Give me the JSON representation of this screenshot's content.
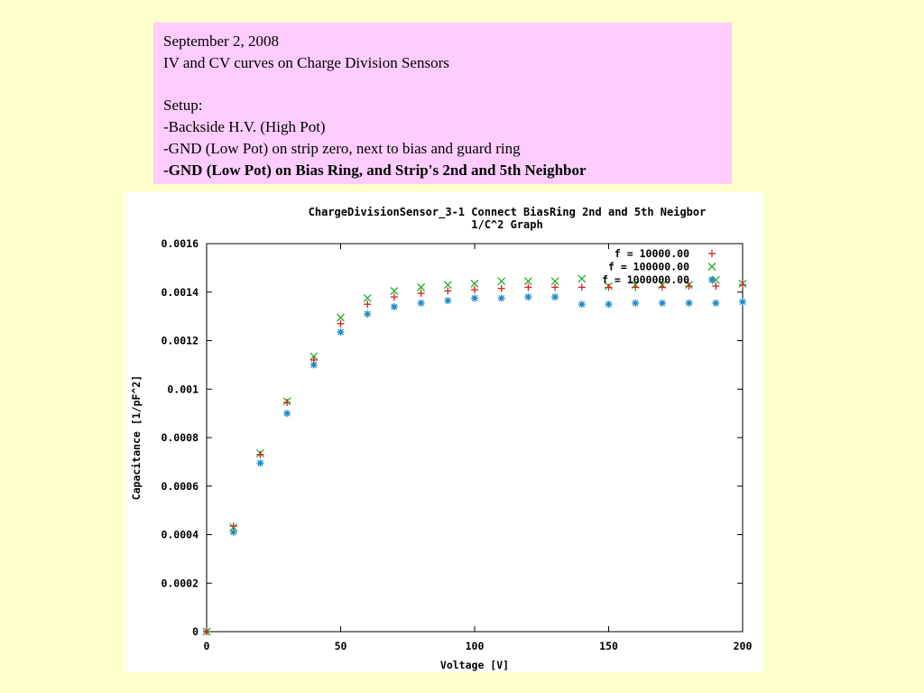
{
  "notes": {
    "date": "September 2, 2008",
    "subject": "IV and CV curves on Charge Division Sensors",
    "setup_heading": "Setup:",
    "setup_items": [
      "-Backside H.V. (High Pot)",
      "-GND (Low Pot) on strip zero, next to bias and guard ring"
    ],
    "setup_highlight": "-GND (Low Pot) on Bias Ring, and Strip's 2nd and 5th Neighbor"
  },
  "chart_data": {
    "type": "scatter",
    "title": "ChargeDivisionSensor_3-1 Connect BiasRing 2nd and 5th Neigbor",
    "subtitle": "1/C^2 Graph",
    "xlabel": "Voltage [V]",
    "ylabel": "Capacitance [1/pF^2]",
    "xlim": [
      0,
      200
    ],
    "ylim": [
      0,
      0.0016
    ],
    "xticks": [
      "0",
      "50",
      "100",
      "150",
      "200"
    ],
    "yticks": [
      "0",
      "0.0002",
      "0.0004",
      "0.0006",
      "0.0008",
      "0.001",
      "0.0012",
      "0.0014",
      "0.0016"
    ],
    "grid": false,
    "legend_position": "top-right",
    "series": [
      {
        "name": "f = 10000.00",
        "marker": "plus",
        "color": "#cc2222",
        "x": [
          0,
          10,
          20,
          30,
          40,
          50,
          60,
          70,
          80,
          90,
          100,
          110,
          120,
          130,
          140,
          150,
          160,
          170,
          180,
          190,
          200
        ],
        "y": [
          0.0,
          0.000435,
          0.00073,
          0.000945,
          0.00112,
          0.00127,
          0.00135,
          0.00138,
          0.001395,
          0.001405,
          0.00141,
          0.001415,
          0.00142,
          0.00142,
          0.00142,
          0.00142,
          0.00142,
          0.00142,
          0.001425,
          0.001425,
          0.00143
        ]
      },
      {
        "name": "f = 100000.00",
        "marker": "cross",
        "color": "#22aa22",
        "x": [
          0,
          10,
          20,
          30,
          40,
          50,
          60,
          70,
          80,
          90,
          100,
          110,
          120,
          130,
          140,
          150,
          160,
          170,
          180,
          190,
          200
        ],
        "y": [
          0.0,
          0.00043,
          0.000735,
          0.00095,
          0.001135,
          0.001295,
          0.001375,
          0.001405,
          0.00142,
          0.00143,
          0.001435,
          0.001445,
          0.001445,
          0.001445,
          0.001455,
          0.001425,
          0.00143,
          0.00143,
          0.00143,
          0.00145,
          0.001435
        ]
      },
      {
        "name": "f = 1000000.00",
        "marker": "star",
        "color": "#1a86c8",
        "x": [
          0,
          10,
          20,
          30,
          40,
          50,
          60,
          70,
          80,
          90,
          100,
          110,
          120,
          130,
          140,
          150,
          160,
          170,
          180,
          190,
          200
        ],
        "y": [
          0.0,
          0.00041,
          0.000695,
          0.0009,
          0.0011,
          0.001235,
          0.00131,
          0.00134,
          0.001355,
          0.001365,
          0.001375,
          0.001375,
          0.00138,
          0.00138,
          0.00135,
          0.00135,
          0.001355,
          0.001355,
          0.001355,
          0.001355,
          0.00136
        ]
      }
    ]
  }
}
